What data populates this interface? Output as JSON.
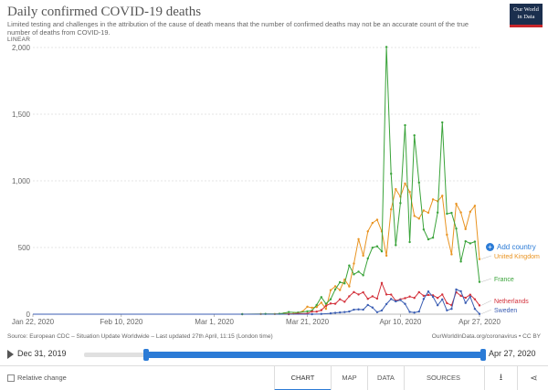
{
  "header": {
    "title": "Daily confirmed COVID-19 deaths",
    "subtitle": "Limited testing and challenges in the attribution of the cause of death means that the number of confirmed deaths may not be an accurate count of the true number of deaths from COVID-19.",
    "logo_line1": "Our World",
    "logo_line2": "in Data",
    "scale_label": "LINEAR"
  },
  "add_country_label": "Add country",
  "footer": {
    "source": "Source: European CDC – Situation Update Worldwide – Last updated 27th April, 11:15 (London time)",
    "url": "OurWorldInData.org/coronavirus • CC BY"
  },
  "timeline": {
    "start_label": "Dec 31, 2019",
    "end_label": "Apr 27, 2020",
    "range_start_fraction": 0.155,
    "range_end_fraction": 1.0
  },
  "bottom_bar": {
    "relative_change": "Relative change",
    "tabs": [
      "CHART",
      "MAP",
      "DATA",
      "SOURCES"
    ],
    "active_tab": "CHART",
    "download_icon": "download-icon",
    "share_icon": "share-icon"
  },
  "chart_data": {
    "type": "line",
    "title": "Daily confirmed COVID-19 deaths",
    "ylim": [
      0,
      2000
    ],
    "y_ticks": [
      0,
      500,
      1000,
      1500,
      2000
    ],
    "y_tick_labels": [
      "0",
      "500",
      "1,000",
      "1,500",
      "2,000"
    ],
    "x_range_days": [
      0,
      96
    ],
    "x_ticks": [
      {
        "day": 0,
        "label": "Jan 22, 2020"
      },
      {
        "day": 19,
        "label": "Feb 10, 2020"
      },
      {
        "day": 39,
        "label": "Mar 1, 2020"
      },
      {
        "day": 59,
        "label": "Mar 21, 2020"
      },
      {
        "day": 79,
        "label": "Apr 10, 2020"
      },
      {
        "day": 96,
        "label": "Apr 27, 2020"
      }
    ],
    "grid": true,
    "series": [
      {
        "name": "United Kingdom",
        "color": "#e99422",
        "points": [
          [
            0,
            0
          ],
          [
            45,
            0
          ],
          [
            49,
            1
          ],
          [
            52,
            1
          ],
          [
            54,
            6
          ],
          [
            56,
            3
          ],
          [
            58,
            21
          ],
          [
            59,
            56
          ],
          [
            60,
            48
          ],
          [
            61,
            54
          ],
          [
            62,
            87
          ],
          [
            63,
            40
          ],
          [
            64,
            180
          ],
          [
            65,
            209
          ],
          [
            66,
            181
          ],
          [
            67,
            260
          ],
          [
            68,
            208
          ],
          [
            69,
            380
          ],
          [
            70,
            563
          ],
          [
            71,
            439
          ],
          [
            72,
            621
          ],
          [
            73,
            684
          ],
          [
            74,
            708
          ],
          [
            75,
            621
          ],
          [
            76,
            439
          ],
          [
            77,
            786
          ],
          [
            78,
            938
          ],
          [
            79,
            881
          ],
          [
            80,
            980
          ],
          [
            81,
            917
          ],
          [
            82,
            737
          ],
          [
            83,
            717
          ],
          [
            84,
            778
          ],
          [
            85,
            761
          ],
          [
            86,
            861
          ],
          [
            87,
            847
          ],
          [
            88,
            888
          ],
          [
            89,
            596
          ],
          [
            90,
            449
          ],
          [
            91,
            828
          ],
          [
            92,
            763
          ],
          [
            93,
            638
          ],
          [
            94,
            768
          ],
          [
            95,
            813
          ],
          [
            96,
            413
          ]
        ]
      },
      {
        "name": "France",
        "color": "#3aa33a",
        "points": [
          [
            0,
            0
          ],
          [
            40,
            0
          ],
          [
            45,
            0
          ],
          [
            50,
            2
          ],
          [
            53,
            3
          ],
          [
            55,
            16
          ],
          [
            57,
            12
          ],
          [
            59,
            21
          ],
          [
            60,
            27
          ],
          [
            61,
            69
          ],
          [
            62,
            128
          ],
          [
            63,
            78
          ],
          [
            64,
            112
          ],
          [
            65,
            186
          ],
          [
            66,
            240
          ],
          [
            67,
            231
          ],
          [
            68,
            365
          ],
          [
            69,
            299
          ],
          [
            70,
            319
          ],
          [
            71,
            292
          ],
          [
            72,
            418
          ],
          [
            73,
            499
          ],
          [
            74,
            509
          ],
          [
            75,
            471
          ],
          [
            76,
            2004
          ],
          [
            77,
            1053
          ],
          [
            78,
            518
          ],
          [
            79,
            833
          ],
          [
            80,
            1417
          ],
          [
            81,
            541
          ],
          [
            82,
            1341
          ],
          [
            83,
            987
          ],
          [
            84,
            635
          ],
          [
            85,
            561
          ],
          [
            86,
            574
          ],
          [
            87,
            762
          ],
          [
            88,
            1438
          ],
          [
            89,
            753
          ],
          [
            90,
            760
          ],
          [
            91,
            642
          ],
          [
            92,
            395
          ],
          [
            93,
            547
          ],
          [
            94,
            531
          ],
          [
            95,
            544
          ],
          [
            96,
            242
          ]
        ]
      },
      {
        "name": "Netherlands",
        "color": "#d3313b",
        "points": [
          [
            0,
            0
          ],
          [
            55,
            0
          ],
          [
            57,
            4
          ],
          [
            59,
            5
          ],
          [
            60,
            20
          ],
          [
            61,
            19
          ],
          [
            62,
            30
          ],
          [
            63,
            63
          ],
          [
            64,
            80
          ],
          [
            65,
            78
          ],
          [
            66,
            112
          ],
          [
            67,
            93
          ],
          [
            68,
            134
          ],
          [
            69,
            166
          ],
          [
            70,
            148
          ],
          [
            71,
            164
          ],
          [
            72,
            115
          ],
          [
            73,
            134
          ],
          [
            74,
            117
          ],
          [
            75,
            234
          ],
          [
            76,
            148
          ],
          [
            77,
            147
          ],
          [
            78,
            101
          ],
          [
            79,
            112
          ],
          [
            80,
            120
          ],
          [
            81,
            132
          ],
          [
            82,
            122
          ],
          [
            83,
            165
          ],
          [
            84,
            138
          ],
          [
            85,
            144
          ],
          [
            86,
            142
          ],
          [
            87,
            122
          ],
          [
            88,
            148
          ],
          [
            89,
            83
          ],
          [
            90,
            67
          ],
          [
            91,
            165
          ],
          [
            92,
            138
          ],
          [
            93,
            123
          ],
          [
            94,
            146
          ],
          [
            95,
            112
          ],
          [
            96,
            66
          ]
        ]
      },
      {
        "name": "Sweden",
        "color": "#3b5eb3",
        "points": [
          [
            0,
            0
          ],
          [
            60,
            0
          ],
          [
            62,
            2
          ],
          [
            64,
            6
          ],
          [
            65,
            10
          ],
          [
            66,
            13
          ],
          [
            67,
            16
          ],
          [
            68,
            20
          ],
          [
            69,
            34
          ],
          [
            70,
            36
          ],
          [
            71,
            34
          ],
          [
            72,
            69
          ],
          [
            73,
            50
          ],
          [
            74,
            15
          ],
          [
            75,
            28
          ],
          [
            76,
            76
          ],
          [
            77,
            114
          ],
          [
            78,
            96
          ],
          [
            79,
            106
          ],
          [
            80,
            77
          ],
          [
            81,
            17
          ],
          [
            82,
            12
          ],
          [
            83,
            20
          ],
          [
            84,
            114
          ],
          [
            85,
            170
          ],
          [
            86,
            130
          ],
          [
            87,
            67
          ],
          [
            88,
            111
          ],
          [
            89,
            29
          ],
          [
            90,
            40
          ],
          [
            91,
            185
          ],
          [
            92,
            172
          ],
          [
            93,
            84
          ],
          [
            94,
            131
          ],
          [
            95,
            40
          ],
          [
            96,
            2
          ]
        ]
      }
    ],
    "legend": "right"
  }
}
